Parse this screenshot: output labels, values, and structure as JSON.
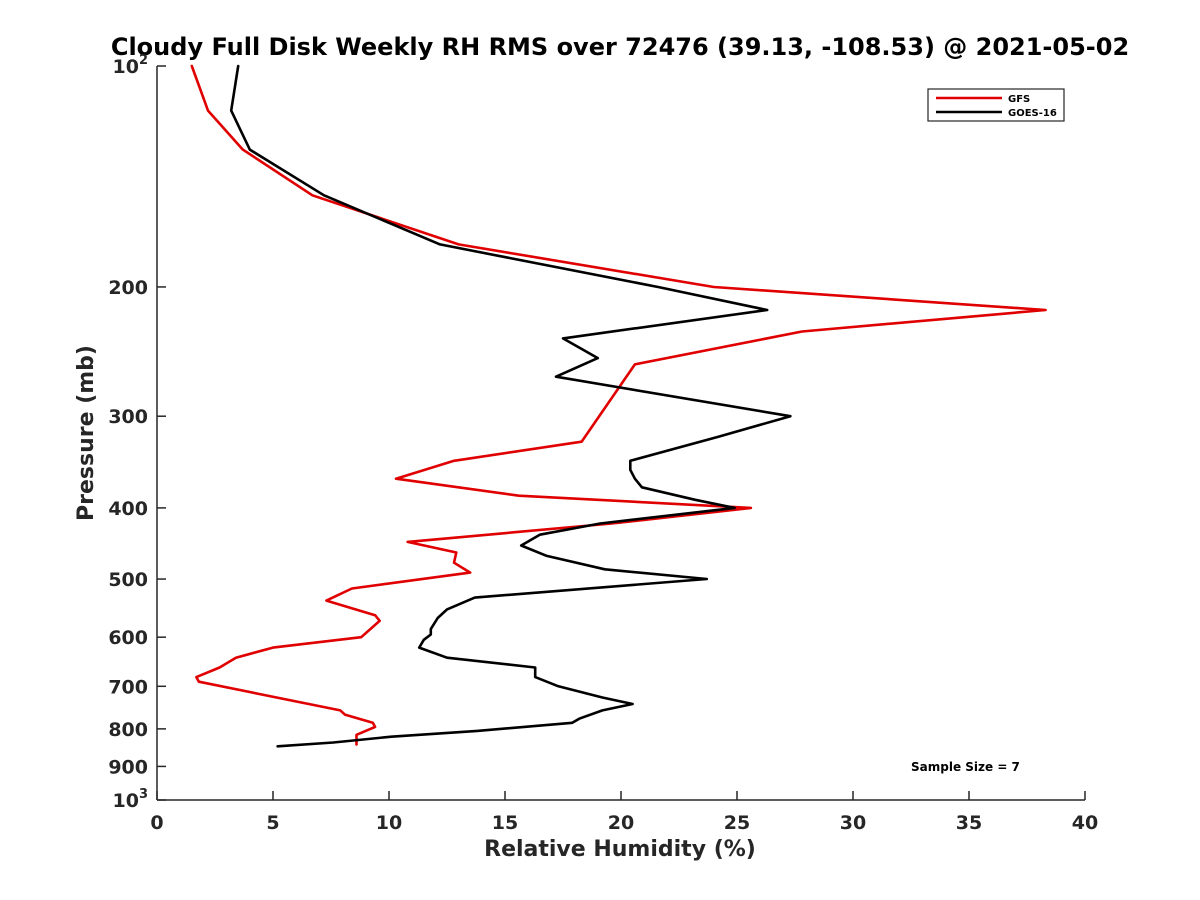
{
  "chart_data": {
    "type": "line",
    "title": "Cloudy Full Disk Weekly RH RMS over 72476 (39.13, -108.53) @ 2021-05-02",
    "xlabel": "Relative Humidity (%)",
    "ylabel": "Pressure (mb)",
    "xlim": [
      0,
      40
    ],
    "ylim": [
      100,
      1000
    ],
    "y_scale": "log",
    "y_reversed": true,
    "grid": false,
    "legend_placement": "top-right",
    "annotation": "Sample Size = 7",
    "x_ticks": [
      "0",
      "5",
      "10",
      "15",
      "20",
      "25",
      "30",
      "35",
      "40"
    ],
    "y_ticks": [
      {
        "value": 100,
        "base": "10",
        "exp": "2"
      },
      {
        "value": 200,
        "label": "200"
      },
      {
        "value": 300,
        "label": "300"
      },
      {
        "value": 400,
        "label": "400"
      },
      {
        "value": 500,
        "label": "500"
      },
      {
        "value": 600,
        "label": "600"
      },
      {
        "value": 700,
        "label": "700"
      },
      {
        "value": 800,
        "label": "800"
      },
      {
        "value": 900,
        "label": "900"
      },
      {
        "value": 1000,
        "base": "10",
        "exp": "3"
      }
    ],
    "series": [
      {
        "name": "GFS",
        "color": "#e00000",
        "points": [
          [
            1.5,
            100
          ],
          [
            2.2,
            115
          ],
          [
            3.7,
            130
          ],
          [
            6.7,
            150
          ],
          [
            13.0,
            175
          ],
          [
            24.0,
            200
          ],
          [
            38.3,
            215
          ],
          [
            27.8,
            230
          ],
          [
            20.6,
            255
          ],
          [
            18.3,
            325
          ],
          [
            12.8,
            345
          ],
          [
            10.3,
            365
          ],
          [
            15.6,
            385
          ],
          [
            25.6,
            400
          ],
          [
            19.6,
            420
          ],
          [
            10.8,
            445
          ],
          [
            12.9,
            460
          ],
          [
            12.8,
            475
          ],
          [
            13.5,
            490
          ],
          [
            8.4,
            515
          ],
          [
            7.3,
            535
          ],
          [
            9.4,
            560
          ],
          [
            9.6,
            570
          ],
          [
            8.8,
            600
          ],
          [
            5.0,
            620
          ],
          [
            3.4,
            640
          ],
          [
            2.7,
            660
          ],
          [
            1.7,
            680
          ],
          [
            1.8,
            690
          ],
          [
            7.9,
            755
          ],
          [
            8.1,
            765
          ],
          [
            9.3,
            785
          ],
          [
            9.4,
            795
          ],
          [
            8.6,
            815
          ],
          [
            8.6,
            840
          ]
        ]
      },
      {
        "name": "GOES-16",
        "color": "#000000",
        "points": [
          [
            3.5,
            100
          ],
          [
            3.2,
            115
          ],
          [
            4.0,
            130
          ],
          [
            7.2,
            150
          ],
          [
            12.2,
            175
          ],
          [
            21.6,
            200
          ],
          [
            26.3,
            215
          ],
          [
            17.5,
            235
          ],
          [
            19.0,
            250
          ],
          [
            17.2,
            265
          ],
          [
            27.3,
            300
          ],
          [
            24.2,
            320
          ],
          [
            20.4,
            345
          ],
          [
            20.4,
            355
          ],
          [
            20.6,
            365
          ],
          [
            20.9,
            375
          ],
          [
            23.2,
            390
          ],
          [
            24.9,
            400
          ],
          [
            19.1,
            420
          ],
          [
            16.5,
            435
          ],
          [
            15.7,
            450
          ],
          [
            16.8,
            465
          ],
          [
            19.3,
            485
          ],
          [
            23.7,
            500
          ],
          [
            13.7,
            530
          ],
          [
            12.5,
            550
          ],
          [
            12.1,
            565
          ],
          [
            11.8,
            585
          ],
          [
            11.8,
            595
          ],
          [
            11.5,
            605
          ],
          [
            11.3,
            620
          ],
          [
            12.5,
            640
          ],
          [
            16.3,
            660
          ],
          [
            16.3,
            670
          ],
          [
            16.3,
            680
          ],
          [
            17.3,
            700
          ],
          [
            19.2,
            725
          ],
          [
            20.5,
            740
          ],
          [
            19.2,
            755
          ],
          [
            18.2,
            775
          ],
          [
            17.9,
            785
          ],
          [
            13.8,
            805
          ],
          [
            10.1,
            820
          ],
          [
            7.6,
            835
          ],
          [
            5.2,
            845
          ]
        ]
      }
    ]
  }
}
